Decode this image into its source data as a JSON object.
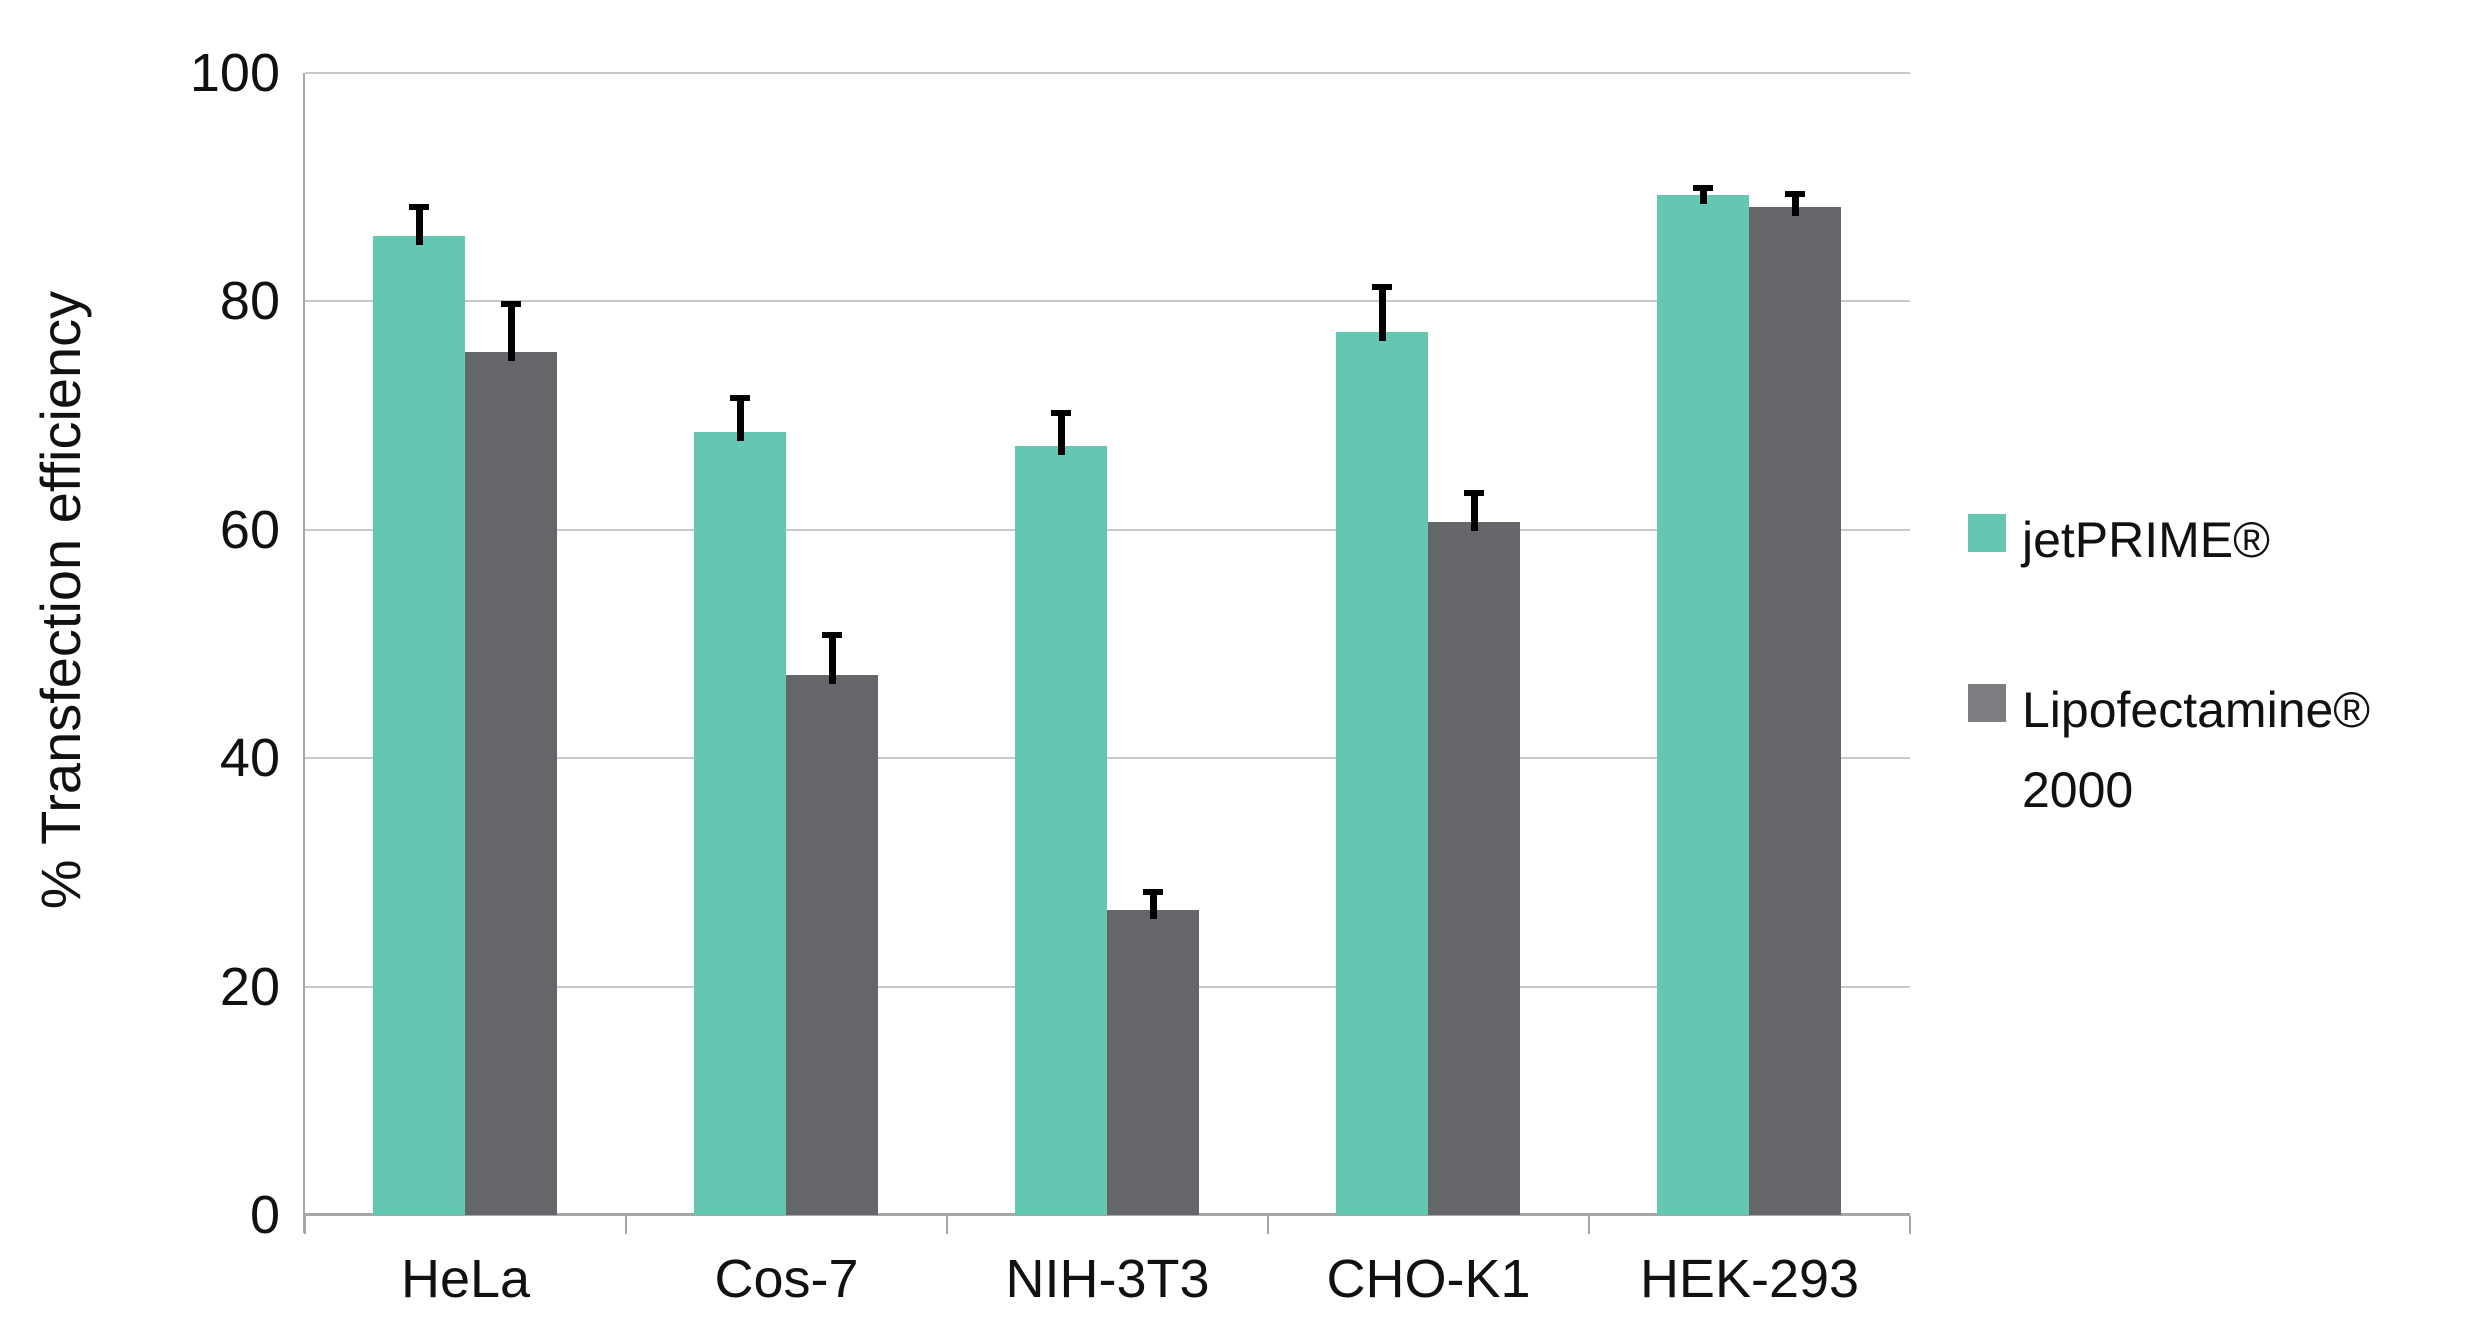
{
  "chart_data": {
    "type": "bar",
    "title": "",
    "xlabel": "",
    "ylabel": "% Transfection efficiency",
    "ylim": [
      0,
      100
    ],
    "yticks": [
      0,
      20,
      40,
      60,
      80,
      100
    ],
    "ytick_labels": [
      "0",
      "20",
      "40",
      "60",
      "80",
      "100"
    ],
    "grid": true,
    "legend_position": "right",
    "categories": [
      "HeLa",
      "Cos-7",
      "NIH-3T3",
      "CHO-K1",
      "HEK-293"
    ],
    "series": [
      {
        "name": "jetPRIME®",
        "color": "#63C7B2",
        "legend_color": "#63C7B2",
        "values": [
          85.7,
          68.6,
          67.3,
          77.3,
          89.3
        ],
        "errors_up": [
          2.5,
          3.0,
          2.9,
          3.9,
          0.6
        ]
      },
      {
        "name": "Lipofectamine® 2000",
        "color": "#646669",
        "legend_color": "#7C7E81",
        "values": [
          75.6,
          47.3,
          26.7,
          60.7,
          88.3
        ],
        "errors_up": [
          4.2,
          3.5,
          1.6,
          2.5,
          1.1
        ]
      }
    ]
  },
  "colors": {
    "background": "#ffffff",
    "axis_line": "#a6a6a6",
    "gridline": "#c9c9c9",
    "error_bar": "#000000",
    "text": "#111111"
  }
}
